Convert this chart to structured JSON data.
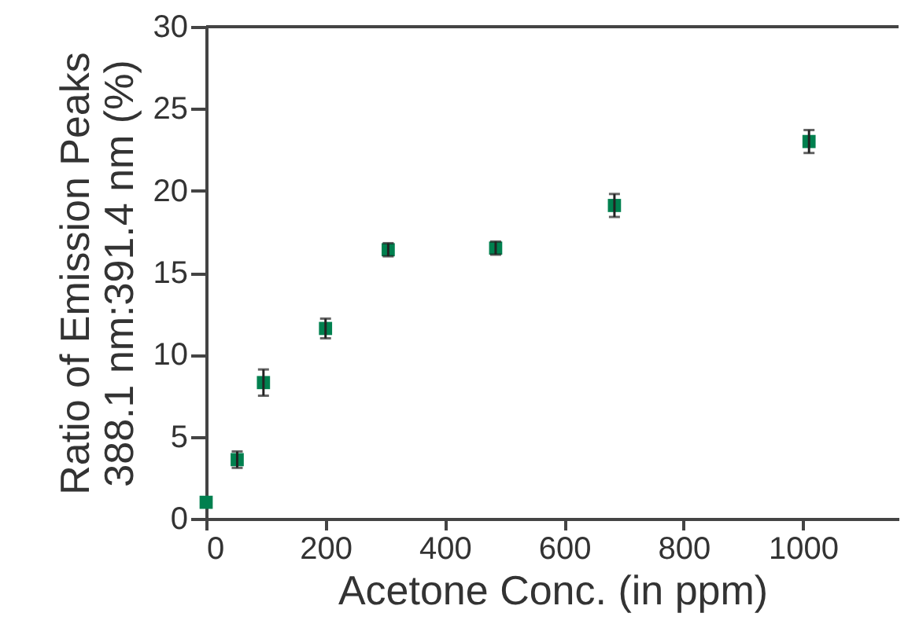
{
  "chart_data": {
    "type": "scatter",
    "xlabel": "Acetone Conc. (in ppm)",
    "ylabel": "Ratio of Emission Peaks\n388.1 nm:391.4 nm  (%)",
    "x": [
      0,
      52,
      96,
      200,
      305,
      485,
      684,
      1010
    ],
    "series": [
      {
        "color": "#00804f",
        "values": [
          1.0,
          3.6,
          8.3,
          11.6,
          16.4,
          16.5,
          19.1,
          23.0
        ],
        "errors": [
          null,
          0.5,
          0.8,
          0.6,
          0.4,
          0.4,
          0.7,
          0.7
        ]
      }
    ],
    "marker": "square",
    "xlim": [
      0,
      1160
    ],
    "xticks": [
      0,
      200,
      400,
      600,
      800,
      1000
    ],
    "ylim": [
      0,
      30
    ],
    "yticks": [
      0,
      5,
      10,
      15,
      20,
      25,
      30
    ],
    "grid": false
  }
}
